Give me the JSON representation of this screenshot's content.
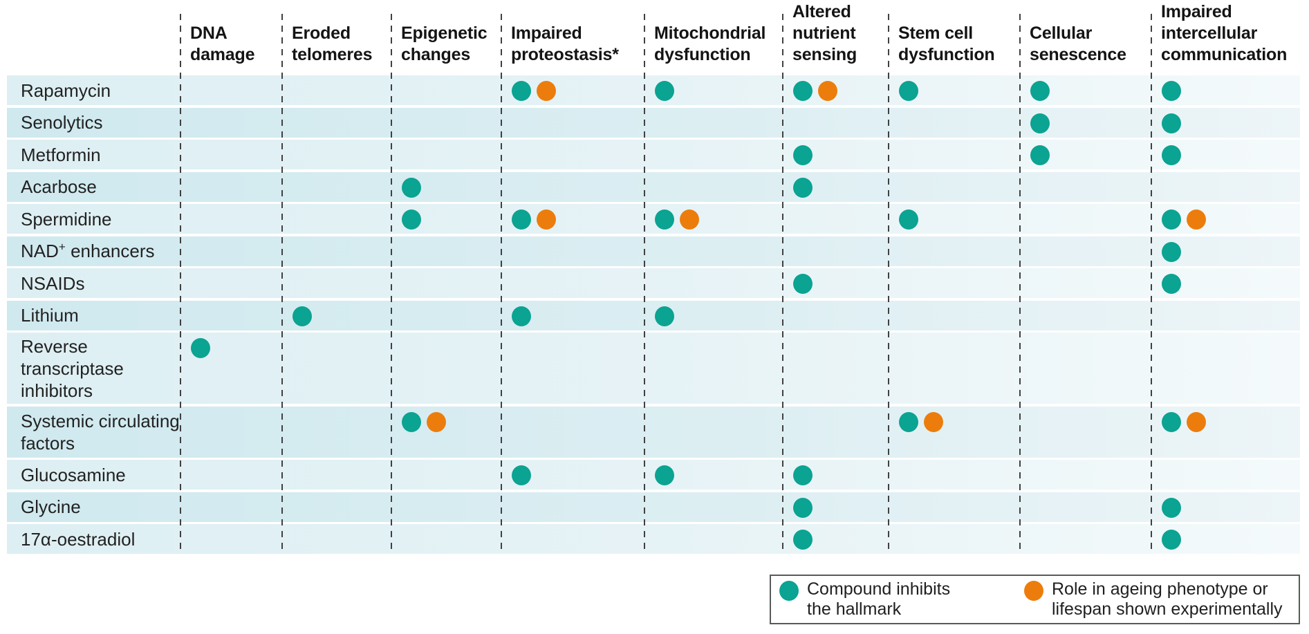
{
  "colors": {
    "teal": "#0ba392",
    "orange": "#ec7d0c",
    "row_band_light": "#ddeff3",
    "row_band_dark": "#cfe9ef",
    "dash_line": "#404040",
    "legend_border": "#58595b"
  },
  "columns": [
    {
      "label": "DNA damage"
    },
    {
      "label": "Eroded telomeres"
    },
    {
      "label": "Epigenetic changes"
    },
    {
      "label": "Impaired proteostasis*"
    },
    {
      "label": "Mitochondrial dysfunction"
    },
    {
      "label": "Altered nutrient sensing"
    },
    {
      "label": "Stem cell dysfunction"
    },
    {
      "label": "Cellular senescence"
    },
    {
      "label": "Impaired intercellular communication"
    }
  ],
  "rows": [
    {
      "label": "Rapamycin",
      "cells": [
        "",
        "",
        "",
        "TO",
        "T",
        "TO",
        "T",
        "T",
        "T"
      ]
    },
    {
      "label": "Senolytics",
      "cells": [
        "",
        "",
        "",
        "",
        "",
        "",
        "",
        "T",
        "T"
      ]
    },
    {
      "label": "Metformin",
      "cells": [
        "",
        "",
        "",
        "",
        "",
        "T",
        "",
        "T",
        "T"
      ]
    },
    {
      "label": "Acarbose",
      "cells": [
        "",
        "",
        "T",
        "",
        "",
        "T",
        "",
        "",
        ""
      ]
    },
    {
      "label": "Spermidine",
      "cells": [
        "",
        "",
        "T",
        "TO",
        "TO",
        "",
        "T",
        "",
        "TO"
      ]
    },
    {
      "label": "NAD+ enhancers",
      "label_parts": [
        {
          "text": "NAD"
        },
        {
          "text": "+",
          "sup": true
        },
        {
          "text": " enhancers"
        }
      ],
      "cells": [
        "",
        "",
        "",
        "",
        "",
        "",
        "",
        "",
        "T"
      ]
    },
    {
      "label": "NSAIDs",
      "cells": [
        "",
        "",
        "",
        "",
        "",
        "T",
        "",
        "",
        "T"
      ]
    },
    {
      "label": "Lithium",
      "cells": [
        "",
        "T",
        "",
        "T",
        "T",
        "",
        "",
        "",
        ""
      ]
    },
    {
      "label": "Reverse transcriptase inhibitors",
      "cells": [
        "T",
        "",
        "",
        "",
        "",
        "",
        "",
        "",
        ""
      ]
    },
    {
      "label": "Systemic circulating factors",
      "cells": [
        "",
        "",
        "TO",
        "",
        "",
        "",
        "TO",
        "",
        "TO"
      ]
    },
    {
      "label": "Glucosamine",
      "cells": [
        "",
        "",
        "",
        "T",
        "T",
        "T",
        "",
        "",
        ""
      ]
    },
    {
      "label": "Glycine",
      "cells": [
        "",
        "",
        "",
        "",
        "",
        "T",
        "",
        "",
        "T"
      ]
    },
    {
      "label": "17α-oestradiol",
      "cells": [
        "",
        "",
        "",
        "",
        "",
        "T",
        "",
        "",
        "T"
      ]
    }
  ],
  "legend": {
    "items": [
      {
        "color": "teal",
        "label": "Compound inhibits the hallmark"
      },
      {
        "color": "orange",
        "label": "Role in ageing phenotype or lifespan shown experimentally"
      }
    ]
  },
  "chart_data": {
    "type": "table",
    "title": "Compounds versus hallmarks of ageing dot matrix",
    "columns": [
      "DNA damage",
      "Eroded telomeres",
      "Epigenetic changes",
      "Impaired proteostasis*",
      "Mitochondrial dysfunction",
      "Altered nutrient sensing",
      "Stem cell dysfunction",
      "Cellular senescence",
      "Impaired intercellular communication"
    ],
    "rows": [
      "Rapamycin",
      "Senolytics",
      "Metformin",
      "Acarbose",
      "Spermidine",
      "NAD+ enhancers",
      "NSAIDs",
      "Lithium",
      "Reverse transcriptase inhibitors",
      "Systemic circulating factors",
      "Glucosamine",
      "Glycine",
      "17α-oestradiol"
    ],
    "matrix": [
      [
        "",
        "",
        "",
        "TO",
        "T",
        "TO",
        "T",
        "T",
        "T"
      ],
      [
        "",
        "",
        "",
        "",
        "",
        "",
        "",
        "T",
        "T"
      ],
      [
        "",
        "",
        "",
        "",
        "",
        "T",
        "",
        "T",
        "T"
      ],
      [
        "",
        "",
        "T",
        "",
        "",
        "T",
        "",
        "",
        ""
      ],
      [
        "",
        "",
        "T",
        "TO",
        "TO",
        "",
        "T",
        "",
        "TO"
      ],
      [
        "",
        "",
        "",
        "",
        "",
        "",
        "",
        "",
        "T"
      ],
      [
        "",
        "",
        "",
        "",
        "",
        "T",
        "",
        "",
        "T"
      ],
      [
        "",
        "T",
        "",
        "T",
        "T",
        "",
        "",
        "",
        ""
      ],
      [
        "T",
        "",
        "",
        "",
        "",
        "",
        "",
        "",
        ""
      ],
      [
        "",
        "",
        "TO",
        "",
        "",
        "",
        "TO",
        "",
        "TO"
      ],
      [
        "",
        "",
        "",
        "T",
        "T",
        "T",
        "",
        "",
        ""
      ],
      [
        "",
        "",
        "",
        "",
        "",
        "T",
        "",
        "",
        "T"
      ],
      [
        "",
        "",
        "",
        "",
        "",
        "T",
        "",
        "",
        "T"
      ]
    ],
    "codes": {
      "T": "teal dot: compound inhibits the hallmark",
      "TO": "teal dot + orange dot: compound inhibits the hallmark and role in ageing phenotype or lifespan shown experimentally"
    },
    "legend_position": "bottom-right"
  }
}
